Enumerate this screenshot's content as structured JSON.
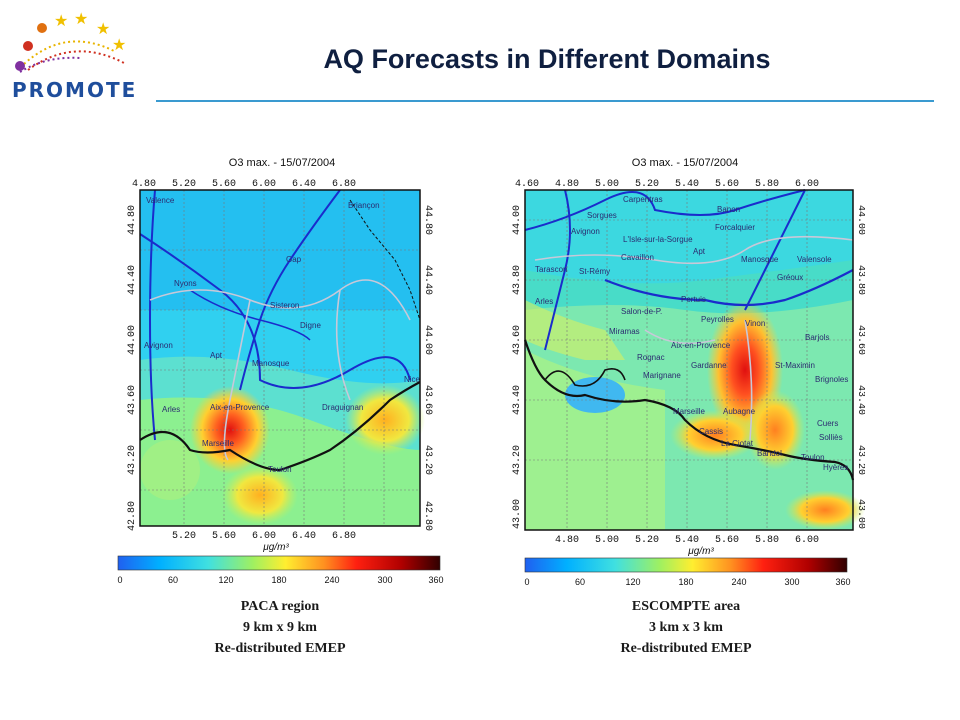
{
  "logo": {
    "text": "PROMOTE",
    "icon": "stars-arc-logo"
  },
  "slide": {
    "title": "AQ Forecasts in Different Domains"
  },
  "colors": {
    "accent_rule": "#3a9ad0",
    "title": "#0f1f40",
    "logo_text": "#1f4e9c"
  },
  "colorbar": {
    "ticks": [
      "0",
      "60",
      "120",
      "180",
      "240",
      "300",
      "360"
    ],
    "stops": [
      "#2060f0",
      "#00b0ff",
      "#40e0e0",
      "#a0f060",
      "#ffee30",
      "#ff9020",
      "#ff2010",
      "#b00000",
      "#300000"
    ]
  },
  "maps": [
    {
      "plot_title": "O3 max. - 15/07/2004",
      "top_ticks": [
        "4.80",
        "5.20",
        "5.60",
        "6.00",
        "6.40",
        "6.80"
      ],
      "bottom_ticks": [
        "5.20",
        "5.60",
        "6.00",
        "6.40",
        "6.80"
      ],
      "left_ticks": [
        "44.80",
        "44.40",
        "44.00",
        "43.60",
        "43.20",
        "42.80"
      ],
      "right_ticks": [
        "44.80",
        "44.40",
        "44.00",
        "43.60",
        "43.20",
        "42.80"
      ],
      "unit": "μg/m³",
      "places": [
        "Valence",
        "Briançon",
        "Gap",
        "Nyons",
        "Sisteron",
        "Digne",
        "Avignon",
        "Apt",
        "Manosque",
        "Aix-en-Provence",
        "Arles",
        "Marseille",
        "Toulon",
        "Draguignan",
        "Nice"
      ],
      "caption": [
        "PACA region",
        "9 km x 9 km",
        "Re-distributed EMEP"
      ]
    },
    {
      "plot_title": "O3 max. - 15/07/2004",
      "top_ticks": [
        "4.60",
        "4.80",
        "5.00",
        "5.20",
        "5.40",
        "5.60",
        "5.80",
        "6.00"
      ],
      "bottom_ticks": [
        "4.80",
        "5.00",
        "5.20",
        "5.40",
        "5.60",
        "5.80",
        "6.00"
      ],
      "left_ticks": [
        "44.00",
        "43.80",
        "43.60",
        "43.40",
        "43.20",
        "43.00"
      ],
      "right_ticks": [
        "44.00",
        "43.80",
        "43.60",
        "43.40",
        "43.20",
        "43.00"
      ],
      "unit": "μg/m³",
      "places": [
        "Carpentras",
        "Banon",
        "Sorgues",
        "Avignon",
        "L'Isle-sur-la-Sorgue",
        "Forcalquier",
        "Cavaillon",
        "Apt",
        "Manosque",
        "Valensole",
        "Tarascon",
        "St-Rémy",
        "Gréoux",
        "Arles",
        "Pertuis",
        "Salon-de-P.",
        "Peyrolles",
        "Vinon",
        "Miramas",
        "Barjols",
        "Aix-en-Provence",
        "Rognac",
        "Gardanne",
        "St-Maximin",
        "Marignane",
        "Brignoles",
        "Marseille",
        "Aubagne",
        "Cuers",
        "Cassis",
        "Solliès",
        "La Ciotat",
        "Bandol",
        "Toulon",
        "Hyères"
      ],
      "caption": [
        "ESCOMPTE area",
        "3 km x 3 km",
        "Re-distributed EMEP"
      ]
    }
  ]
}
